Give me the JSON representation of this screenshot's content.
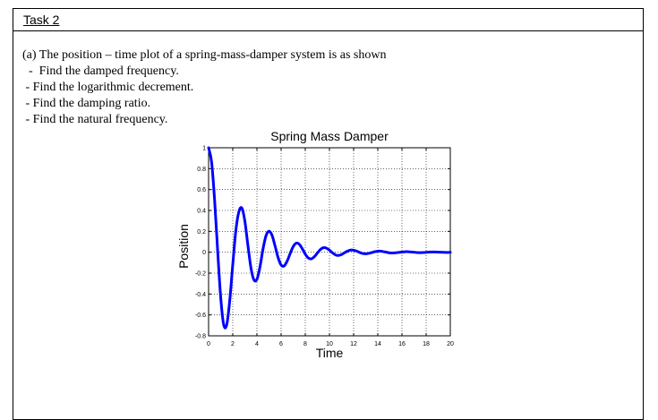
{
  "task": {
    "title": "Task 2"
  },
  "question": {
    "lines": [
      "(a) The position – time plot of a spring-mass-damper system is as shown",
      "  -  Find the damped frequency.",
      " - Find the logarithmic decrement.",
      " - Find the damping ratio.",
      " - Find the natural frequency."
    ]
  },
  "chart_data": {
    "type": "line",
    "title": "Spring Mass Damper",
    "xlabel": "Time",
    "ylabel": "Position",
    "xlim": [
      0,
      20
    ],
    "ylim": [
      -0.8,
      1
    ],
    "xticks": [
      0,
      2,
      4,
      6,
      8,
      10,
      12,
      14,
      16,
      18,
      20
    ],
    "xtick_labels": [
      "0",
      "2",
      "4",
      "6",
      "8",
      "10",
      "12",
      "14",
      "16",
      "18",
      "20"
    ],
    "yticks": [
      -0.8,
      -0.6,
      -0.4,
      -0.2,
      0,
      0.2,
      0.4,
      0.6,
      0.8,
      1
    ],
    "ytick_labels": [
      "-0.8",
      "-0.6",
      "-0.4",
      "-0.2",
      "0",
      "0.2",
      "0.4",
      "0.6",
      "0.8",
      "1"
    ],
    "grid": true,
    "line_color": "#0000ff",
    "x": [
      0,
      0.25,
      0.5,
      0.75,
      1.0,
      1.25,
      1.5,
      1.75,
      2.0,
      2.25,
      2.5,
      2.75,
      3.0,
      3.25,
      3.5,
      3.75,
      4.0,
      4.25,
      4.5,
      4.75,
      5.0,
      5.25,
      5.5,
      5.75,
      6.0,
      6.25,
      6.5,
      6.75,
      7.0,
      7.25,
      7.5,
      7.75,
      8.0,
      8.25,
      8.5,
      8.75,
      9.0,
      9.25,
      9.5,
      9.75,
      10.0,
      10.25,
      10.5,
      10.75,
      11.0,
      11.25,
      11.5,
      11.75,
      12.0,
      12.25,
      12.5,
      12.75,
      13.0,
      13.25,
      13.5,
      13.75,
      14.0,
      14.25,
      14.5,
      14.75,
      15.0,
      15.25,
      15.5,
      15.75,
      16.0,
      16.25,
      16.5,
      16.75,
      17.0,
      17.25,
      17.5,
      17.75,
      18.0,
      18.25,
      18.5,
      18.75,
      19.0,
      19.25,
      19.5,
      19.75,
      20.0
    ],
    "y": [
      1.0,
      0.861,
      0.495,
      0.013,
      -0.43,
      -0.694,
      -0.694,
      -0.462,
      -0.118,
      0.203,
      0.385,
      0.424,
      0.298,
      0.069,
      -0.146,
      -0.264,
      -0.259,
      -0.141,
      0.03,
      0.158,
      0.202,
      0.162,
      0.06,
      -0.051,
      -0.122,
      -0.131,
      -0.085,
      -0.012,
      0.054,
      0.087,
      0.077,
      0.034,
      -0.018,
      -0.055,
      -0.063,
      -0.043,
      -0.008,
      0.026,
      0.043,
      0.039,
      0.02,
      -0.006,
      -0.025,
      -0.031,
      -0.022,
      -0.005,
      0.011,
      0.021,
      0.019,
      0.011,
      -0.002,
      -0.012,
      -0.015,
      -0.011,
      -0.003,
      0.005,
      0.01,
      0.01,
      0.005,
      -0.001,
      -0.006,
      -0.007,
      -0.005,
      -0.002,
      0.002,
      0.005,
      0.005,
      0.003,
      0.0,
      -0.003,
      -0.004,
      -0.003,
      -0.001,
      0.001,
      0.002,
      0.002,
      0.001,
      0.0,
      -0.001,
      -0.002,
      -0.001
    ]
  }
}
